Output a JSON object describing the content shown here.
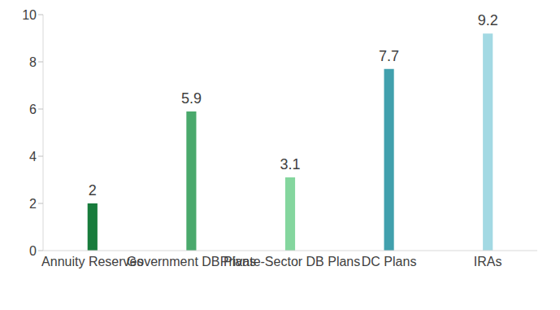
{
  "chart_data": {
    "type": "bar",
    "categories": [
      "Annuity Reserves",
      "Government DB Plans",
      "Private-Sector DB Plans",
      "DC Plans",
      "IRAs"
    ],
    "values": [
      2,
      5.9,
      3.1,
      7.7,
      9.2
    ],
    "colors": [
      "#187c3c",
      "#4aa96c",
      "#84d69e",
      "#41a0ad",
      "#a3d9e3"
    ],
    "ylim": [
      0,
      10
    ],
    "yticks": [
      0,
      2,
      4,
      6,
      8,
      10
    ],
    "data_labels": true,
    "grid": false
  }
}
